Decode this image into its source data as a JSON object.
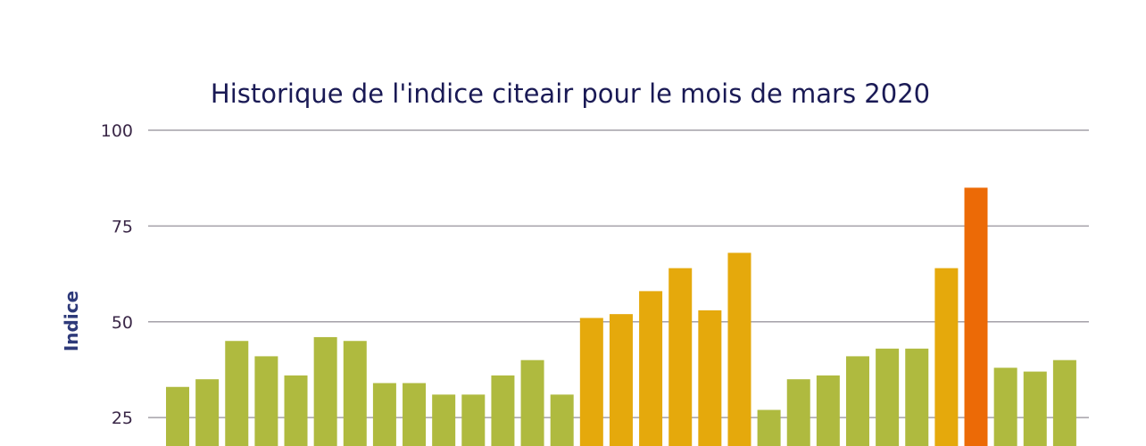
{
  "chart_data": {
    "type": "bar",
    "title": "Historique de l'indice citeair pour le mois de mars 2020",
    "xlabel": "",
    "ylabel": "Indice",
    "ylim_visible": [
      25,
      100
    ],
    "yticks": [
      25,
      50,
      75,
      100
    ],
    "grid": true,
    "values": [
      33,
      35,
      45,
      41,
      36,
      46,
      45,
      34,
      34,
      31,
      31,
      36,
      40,
      31,
      51,
      52,
      58,
      64,
      53,
      68,
      27,
      35,
      36,
      41,
      43,
      43,
      64,
      85,
      38,
      37,
      40
    ],
    "colors": {
      "low": "#afba3f",
      "medium": "#e5a90c",
      "high": "#ec6a06"
    },
    "bar_levels": [
      "low",
      "low",
      "low",
      "low",
      "low",
      "low",
      "low",
      "low",
      "low",
      "low",
      "low",
      "low",
      "low",
      "low",
      "medium",
      "medium",
      "medium",
      "medium",
      "medium",
      "medium",
      "low",
      "low",
      "low",
      "low",
      "low",
      "low",
      "medium",
      "high",
      "low",
      "low",
      "low"
    ]
  }
}
